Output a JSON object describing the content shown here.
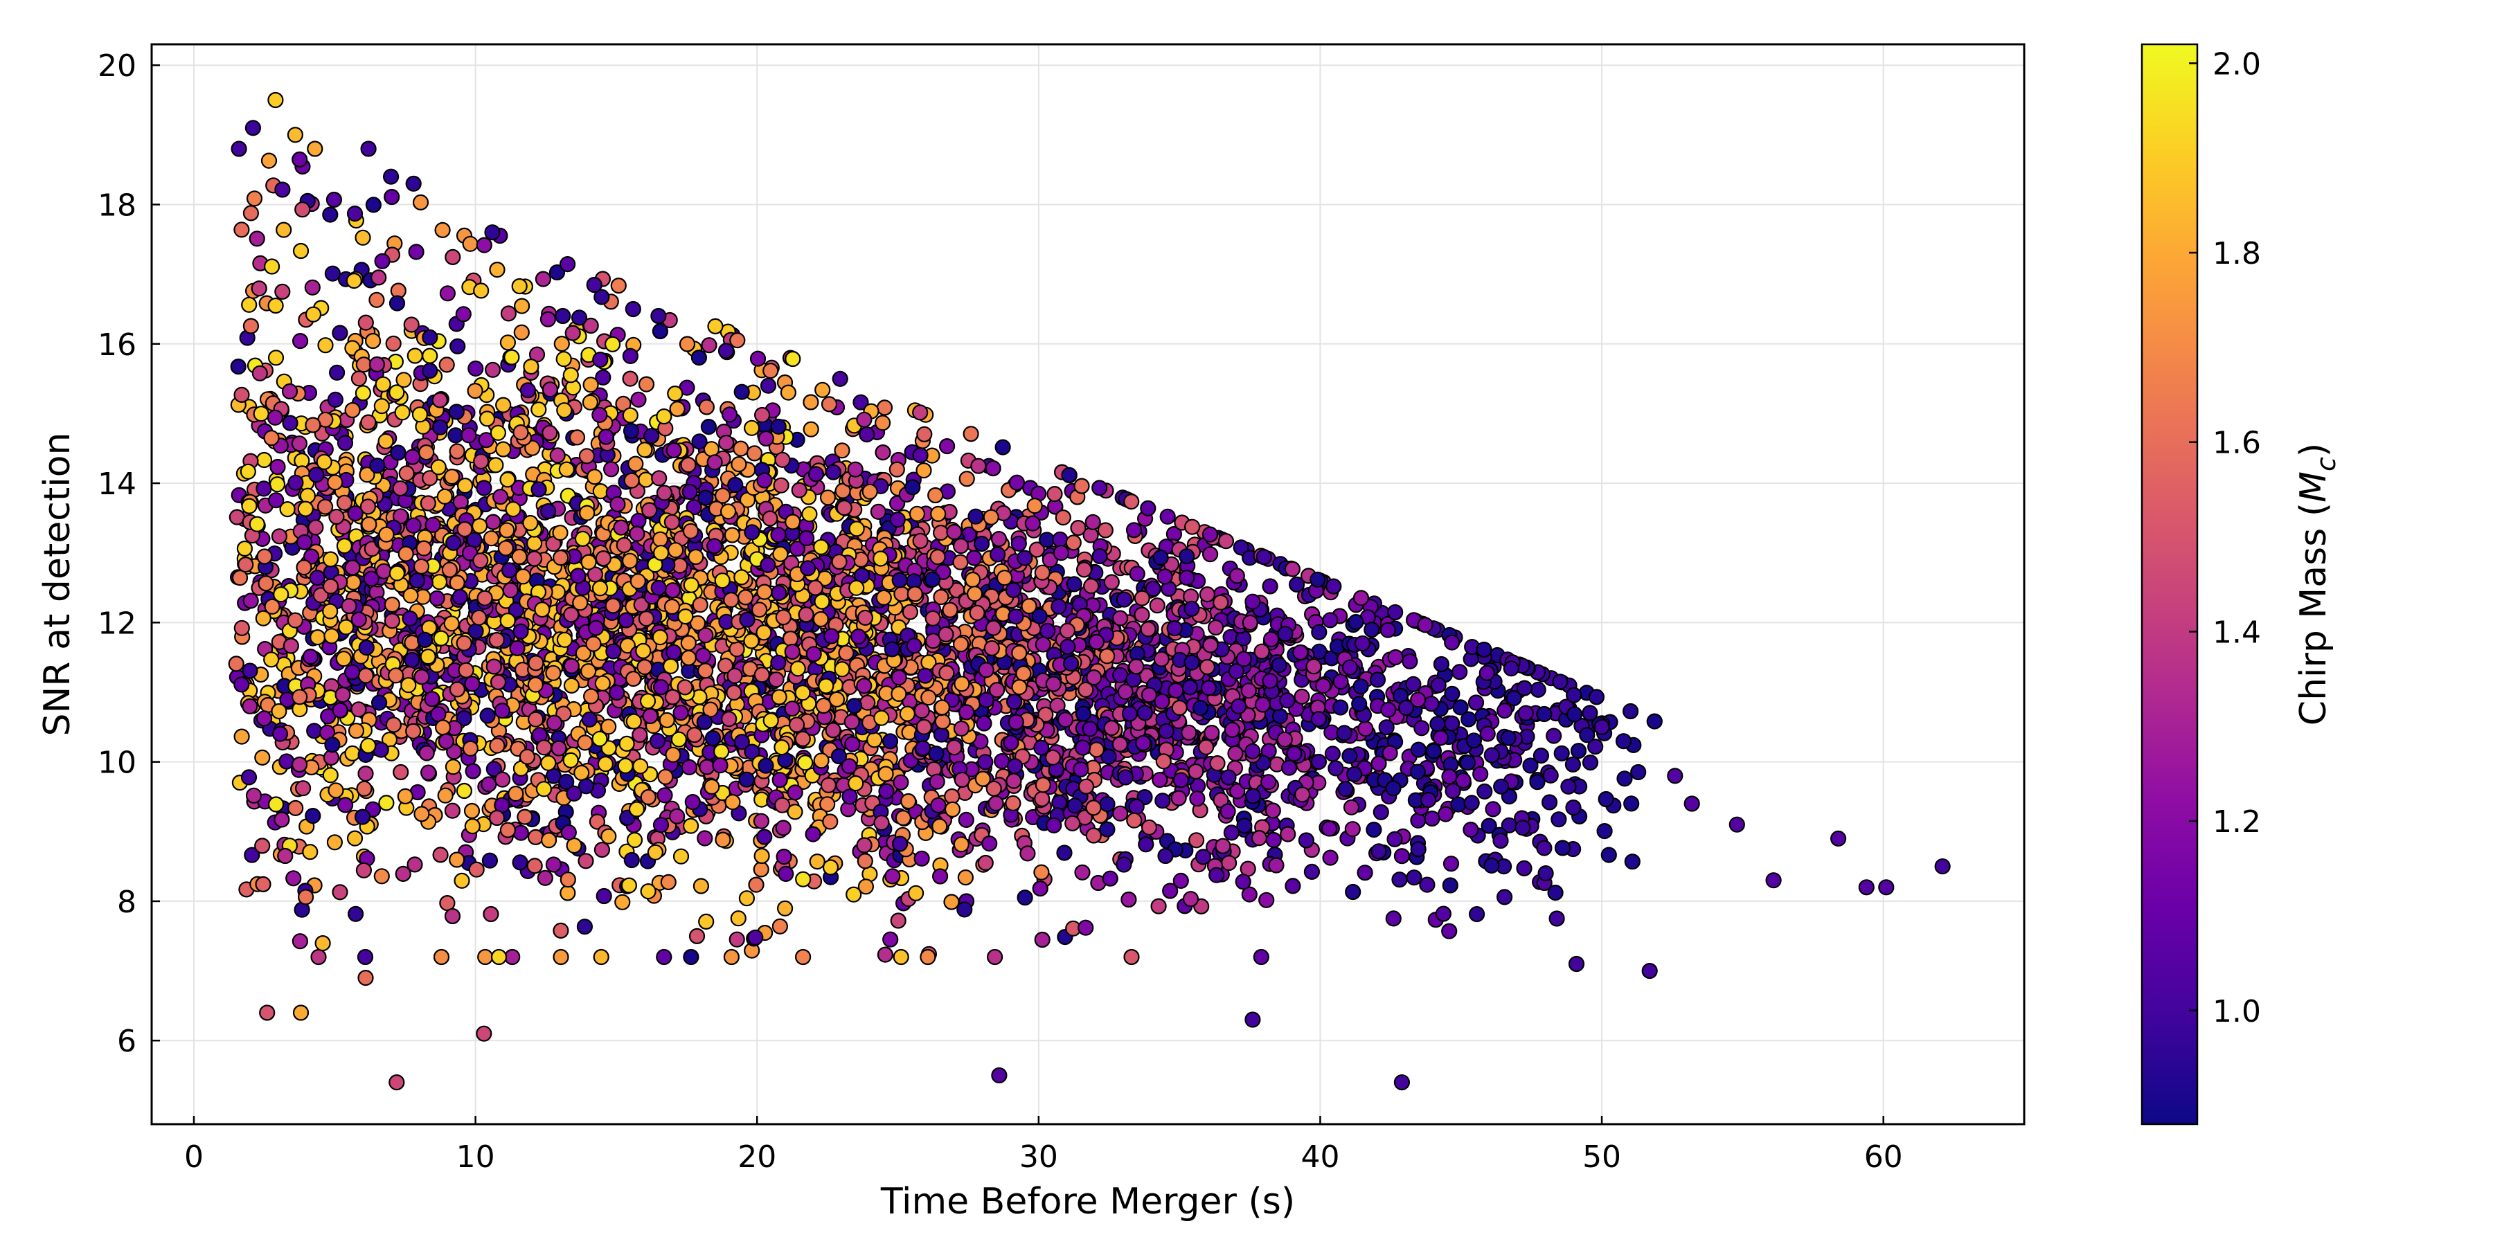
{
  "chart_data": {
    "type": "scatter",
    "title": "",
    "xlabel": "Time Before Merger (s)",
    "ylabel": "SNR at detection",
    "xlim": [
      -1.5,
      65
    ],
    "ylim": [
      4.8,
      20.3
    ],
    "xticks": [
      0,
      10,
      20,
      30,
      40,
      50,
      60
    ],
    "yticks": [
      6,
      8,
      10,
      12,
      14,
      16,
      18,
      20
    ],
    "grid": true,
    "colorbar": {
      "label": "Chirp Mass (",
      "label_math": "M",
      "label_sub": "c",
      "label_close": ")",
      "colormap": "plasma",
      "range": [
        0.88,
        2.02
      ],
      "ticks": [
        1.0,
        1.2,
        1.4,
        1.6,
        1.8,
        2.0
      ]
    },
    "marker_edge_color": "#000000",
    "point_count_approx": 5000,
    "points_sample": [
      [
        1.6,
        18.8,
        1.0
      ],
      [
        2.1,
        19.1,
        0.98
      ],
      [
        2.9,
        19.5,
        1.9
      ],
      [
        3.6,
        19.0,
        1.85
      ],
      [
        4.3,
        18.8,
        1.8
      ],
      [
        6.2,
        18.8,
        1.0
      ],
      [
        7.0,
        18.4,
        0.95
      ],
      [
        7.8,
        18.3,
        0.95
      ],
      [
        10.6,
        17.6,
        0.95
      ],
      [
        13.1,
        16.4,
        0.96
      ],
      [
        15.6,
        16.5,
        0.98
      ],
      [
        16.5,
        16.4,
        0.97
      ],
      [
        18.9,
        15.9,
        1.0
      ],
      [
        20.4,
        15.4,
        1.0
      ],
      [
        23.9,
        14.7,
        1.05
      ],
      [
        25.8,
        14.4,
        1.05
      ],
      [
        3.8,
        6.4,
        1.8
      ],
      [
        2.6,
        6.4,
        1.5
      ],
      [
        6.1,
        6.9,
        1.6
      ],
      [
        7.2,
        5.4,
        1.45
      ],
      [
        10.3,
        6.1,
        1.45
      ],
      [
        28.6,
        5.5,
        1.05
      ],
      [
        42.9,
        5.4,
        1.0
      ],
      [
        37.6,
        6.3,
        1.0
      ],
      [
        49.1,
        7.1,
        1.0
      ],
      [
        51.7,
        7.0,
        1.0
      ],
      [
        53.2,
        9.4,
        1.05
      ],
      [
        54.8,
        9.1,
        1.05
      ],
      [
        56.1,
        8.3,
        1.05
      ],
      [
        58.4,
        8.9,
        1.05
      ],
      [
        59.4,
        8.2,
        1.05
      ],
      [
        60.1,
        8.2,
        1.05
      ],
      [
        62.1,
        8.5,
        1.0
      ],
      [
        52.6,
        9.8,
        1.05
      ],
      [
        50.0,
        10.5,
        1.0
      ],
      [
        47.3,
        10.7,
        1.05
      ],
      [
        44.2,
        11.1,
        1.0
      ],
      [
        41.5,
        11.7,
        1.05
      ],
      [
        37.6,
        12.3,
        1.1
      ],
      [
        33.5,
        12.7,
        1.15
      ],
      [
        30.8,
        13.0,
        1.2
      ],
      [
        27.0,
        13.3,
        1.3
      ],
      [
        21.5,
        13.9,
        1.4
      ]
    ]
  }
}
